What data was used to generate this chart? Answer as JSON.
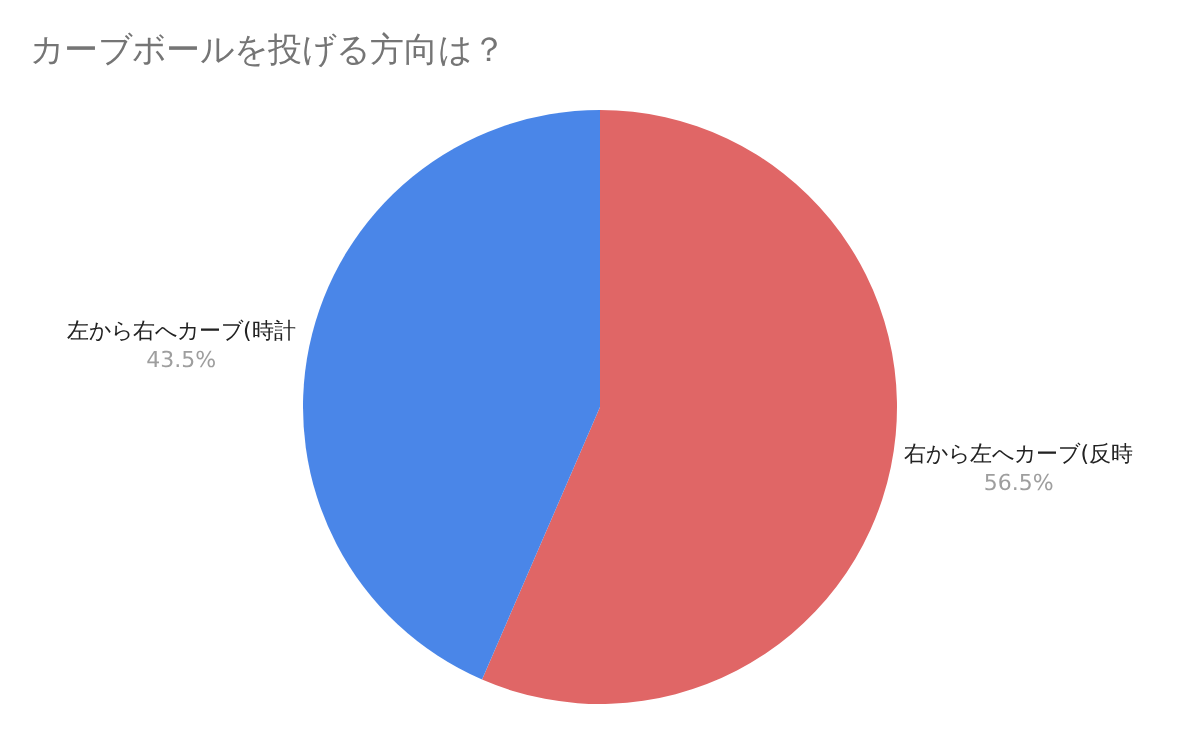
{
  "chart_data": {
    "type": "pie",
    "title": "カーブボールを投げる方向は？",
    "categories": [
      "右から左へカーブ(反時",
      "左から右へカーブ(時計"
    ],
    "values": [
      56.5,
      43.5
    ],
    "colors": [
      "#e06666",
      "#4a86e8"
    ],
    "value_labels": [
      "56.5%",
      "43.5%"
    ],
    "legend": false
  }
}
